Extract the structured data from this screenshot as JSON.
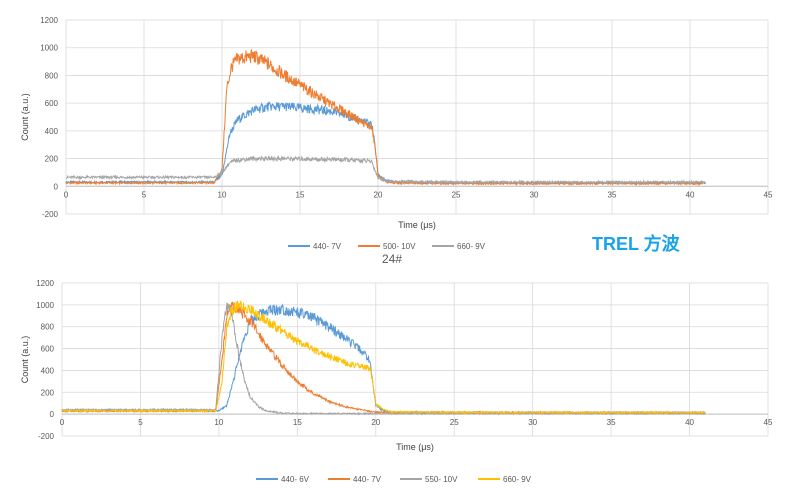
{
  "annotation": "TREL 方波",
  "chart_data": [
    {
      "type": "line",
      "title": "24#",
      "xlabel": "Time (μs)",
      "ylabel": "Count (a.u.)",
      "xlim": [
        0,
        45
      ],
      "ylim": [
        -200,
        1200
      ],
      "xticks": [
        0,
        5,
        10,
        15,
        20,
        25,
        30,
        35,
        40,
        45
      ],
      "yticks": [
        -200,
        0,
        200,
        400,
        600,
        800,
        1000,
        1200
      ],
      "grid": true,
      "legend_position": "bottom",
      "series": [
        {
          "name": "440- 7V",
          "color": "#5b9bd5",
          "x": [
            0,
            9.5,
            10,
            10.5,
            11,
            12,
            13,
            14,
            15,
            16,
            17,
            18,
            19,
            19.6,
            19.8,
            20,
            20.5,
            21,
            25,
            30,
            35,
            41
          ],
          "y": [
            30,
            30,
            80,
            380,
            480,
            550,
            575,
            575,
            565,
            555,
            540,
            510,
            470,
            450,
            300,
            90,
            40,
            30,
            25,
            25,
            25,
            25
          ]
        },
        {
          "name": "500- 10V",
          "color": "#ed7d31",
          "x": [
            0,
            9.5,
            10,
            10.3,
            10.6,
            11,
            12,
            13,
            14,
            15,
            16,
            17,
            18,
            19,
            19.6,
            19.8,
            20,
            20.5,
            21,
            25,
            30,
            35,
            41
          ],
          "y": [
            25,
            25,
            120,
            700,
            860,
            920,
            940,
            880,
            800,
            730,
            660,
            590,
            530,
            460,
            420,
            300,
            80,
            30,
            25,
            20,
            20,
            20,
            20
          ]
        },
        {
          "name": "660- 9V",
          "color": "#a5a5a5",
          "x": [
            0,
            9.5,
            10,
            10.5,
            11,
            12,
            13,
            14,
            15,
            16,
            17,
            18,
            19,
            19.6,
            19.8,
            20,
            20.5,
            21,
            25,
            30,
            35,
            41
          ],
          "y": [
            65,
            65,
            100,
            170,
            190,
            200,
            200,
            200,
            198,
            195,
            195,
            190,
            185,
            180,
            120,
            60,
            40,
            35,
            30,
            30,
            30,
            30
          ]
        }
      ]
    },
    {
      "type": "line",
      "title": "",
      "xlabel": "Time (μs)",
      "ylabel": "Count (a.u.)",
      "xlim": [
        0,
        45
      ],
      "ylim": [
        -200,
        1200
      ],
      "xticks": [
        0,
        5,
        10,
        15,
        20,
        25,
        30,
        35,
        40,
        45
      ],
      "yticks": [
        -200,
        0,
        200,
        400,
        600,
        800,
        1000,
        1200
      ],
      "grid": true,
      "legend_position": "bottom",
      "series": [
        {
          "name": "440- 6V",
          "color": "#5b9bd5",
          "x": [
            0,
            10,
            10.5,
            11,
            11.5,
            12,
            13,
            14,
            15,
            16,
            17,
            18,
            19,
            19.6,
            19.8,
            20,
            20.5,
            21,
            25,
            30,
            35,
            41
          ],
          "y": [
            30,
            30,
            80,
            350,
            650,
            850,
            950,
            960,
            930,
            880,
            800,
            700,
            590,
            500,
            300,
            80,
            30,
            20,
            15,
            15,
            15,
            15
          ]
        },
        {
          "name": "440- 7V",
          "color": "#ed7d31",
          "x": [
            0,
            9.8,
            10.2,
            10.5,
            10.8,
            11.2,
            12,
            13,
            14,
            15,
            16,
            17,
            18,
            19,
            19.5,
            20,
            21,
            25,
            30,
            35,
            41
          ],
          "y": [
            30,
            30,
            500,
            900,
            980,
            960,
            850,
            640,
            450,
            300,
            190,
            120,
            70,
            40,
            30,
            20,
            15,
            15,
            15,
            15,
            15
          ]
        },
        {
          "name": "550- 10V",
          "color": "#a5a5a5",
          "x": [
            0,
            9.8,
            10.2,
            10.5,
            10.8,
            11.2,
            11.6,
            12,
            12.5,
            13,
            14,
            15,
            16,
            18,
            20,
            25,
            30,
            35,
            41
          ],
          "y": [
            40,
            40,
            700,
            990,
            920,
            600,
            320,
            160,
            70,
            30,
            10,
            5,
            5,
            5,
            5,
            5,
            5,
            5,
            5
          ]
        },
        {
          "name": "660- 9V",
          "color": "#ffc000",
          "x": [
            0,
            9.8,
            10.2,
            10.5,
            10.8,
            11.2,
            12,
            13,
            14,
            15,
            16,
            17,
            18,
            19,
            19.6,
            19.8,
            20,
            20.5,
            21,
            25,
            30,
            35,
            41
          ],
          "y": [
            30,
            30,
            300,
            800,
            950,
            990,
            960,
            860,
            760,
            670,
            590,
            530,
            470,
            440,
            420,
            300,
            90,
            40,
            20,
            15,
            15,
            15,
            15
          ]
        }
      ]
    }
  ]
}
